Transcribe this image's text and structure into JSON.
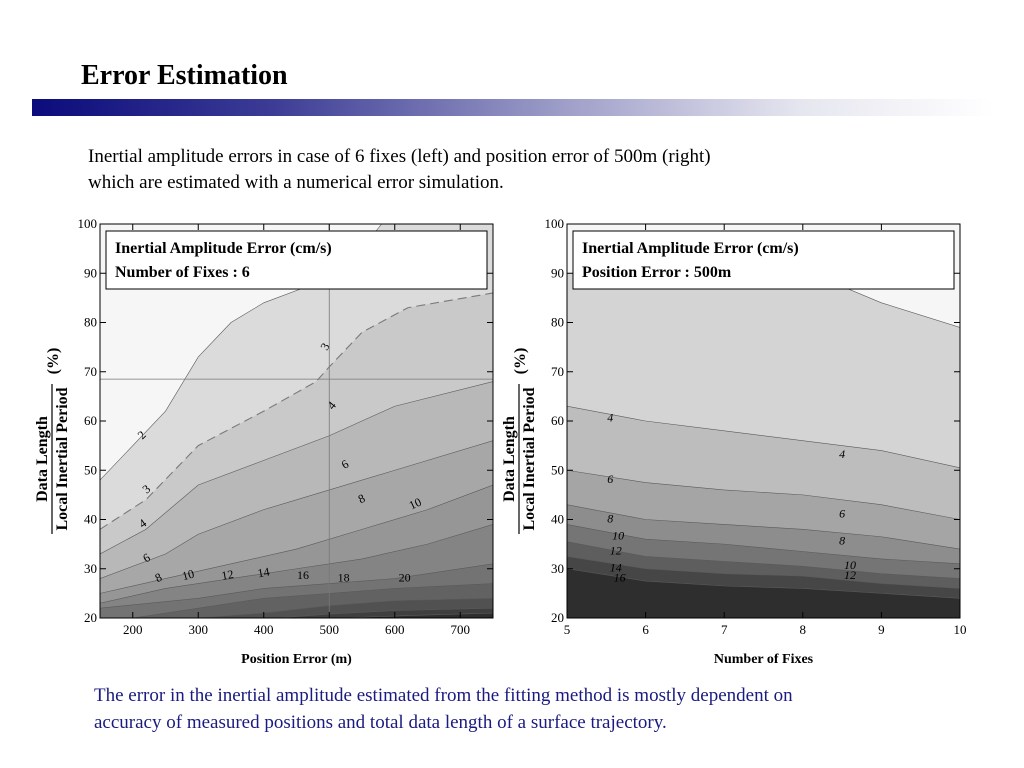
{
  "slide": {
    "title": "Error Estimation",
    "intro_lines": [
      "Inertial amplitude errors in case of 6 fixes (left) and position error of 500m (right)",
      "which are estimated with a numerical error simulation."
    ],
    "conclusion_lines": [
      "The error in the inertial amplitude estimated from the fitting method is mostly dependent on",
      "accuracy of measured positions and total data length of a surface trajectory."
    ],
    "colors": {
      "title_bar_start": "#0b0b7c",
      "conclusion_text": "#1a1a80"
    }
  },
  "chart_data": [
    {
      "type": "contour",
      "xlabel": "Position Error (m)",
      "ylabel_numerator": "Data Length",
      "ylabel_denominator": "Local Inertial Period",
      "ylabel_unit": "(%)",
      "xlim": [
        150,
        750
      ],
      "ylim": [
        20,
        100
      ],
      "xticks": [
        200,
        300,
        400,
        500,
        600,
        700
      ],
      "yticks": [
        20,
        30,
        40,
        50,
        60,
        70,
        80,
        90,
        100
      ],
      "legend": [
        "Inertial Amplitude Error (cm/s)",
        "Number of Fixes : 6"
      ],
      "legend_position": "top",
      "crosshair": {
        "x": 500,
        "y": 68.5
      },
      "contour_levels": [
        2,
        3,
        4,
        6,
        8,
        10,
        12,
        14,
        16,
        18,
        20
      ],
      "contour_lines": [
        {
          "level": 2,
          "points": [
            [
              150,
              48
            ],
            [
              250,
              62
            ],
            [
              300,
              73
            ],
            [
              350,
              80
            ],
            [
              400,
              84
            ],
            [
              480,
              88
            ],
            [
              550,
              95
            ],
            [
              580,
              100
            ]
          ]
        },
        {
          "level": 3,
          "points": [
            [
              150,
              38
            ],
            [
              220,
              44
            ],
            [
              300,
              55
            ],
            [
              400,
              62
            ],
            [
              480,
              68
            ],
            [
              500,
              71
            ],
            [
              550,
              78
            ],
            [
              620,
              83
            ],
            [
              750,
              86
            ]
          ],
          "dashed": true
        },
        {
          "level": 4,
          "points": [
            [
              150,
              33
            ],
            [
              220,
              38
            ],
            [
              300,
              47
            ],
            [
              400,
              52
            ],
            [
              500,
              57
            ],
            [
              600,
              63
            ],
            [
              750,
              68
            ]
          ]
        },
        {
          "level": 6,
          "points": [
            [
              150,
              28
            ],
            [
              250,
              33
            ],
            [
              300,
              37
            ],
            [
              400,
              42
            ],
            [
              500,
              46
            ],
            [
              600,
              50
            ],
            [
              750,
              56
            ]
          ]
        },
        {
          "level": 8,
          "points": [
            [
              150,
              25
            ],
            [
              250,
              28
            ],
            [
              350,
              31
            ],
            [
              450,
              34
            ],
            [
              550,
              38
            ],
            [
              650,
              42
            ],
            [
              750,
              47
            ]
          ]
        },
        {
          "level": 10,
          "points": [
            [
              150,
              23
            ],
            [
              250,
              26
            ],
            [
              350,
              28
            ],
            [
              450,
              30
            ],
            [
              550,
              32
            ],
            [
              650,
              35
            ],
            [
              750,
              39
            ]
          ]
        },
        {
          "level": 12,
          "points": [
            [
              150,
              22
            ],
            [
              300,
              24
            ],
            [
              400,
              26
            ],
            [
              500,
              27
            ],
            [
              600,
              28
            ],
            [
              750,
              31
            ]
          ]
        },
        {
          "level": 14,
          "points": [
            [
              200,
              20
            ],
            [
              300,
              22
            ],
            [
              400,
              24
            ],
            [
              500,
              25
            ],
            [
              600,
              26
            ],
            [
              750,
              27
            ]
          ]
        },
        {
          "level": 16,
          "points": [
            [
              300,
              20
            ],
            [
              400,
              21
            ],
            [
              500,
              22.5
            ],
            [
              600,
              23.5
            ],
            [
              750,
              24
            ]
          ]
        },
        {
          "level": 18,
          "points": [
            [
              420,
              20
            ],
            [
              500,
              20.8
            ],
            [
              600,
              21.5
            ],
            [
              750,
              22
            ]
          ]
        },
        {
          "level": 20,
          "points": [
            [
              520,
              20
            ],
            [
              620,
              20.5
            ],
            [
              750,
              21
            ]
          ]
        }
      ],
      "contour_labels": [
        {
          "text": "2",
          "x": 215,
          "y": 57,
          "rotate": -45
        },
        {
          "text": "3",
          "x": 495,
          "y": 75,
          "rotate": -60
        },
        {
          "text": "4",
          "x": 505,
          "y": 63,
          "rotate": -50
        },
        {
          "text": "3",
          "x": 222,
          "y": 46,
          "rotate": -40
        },
        {
          "text": "4",
          "x": 216,
          "y": 39,
          "rotate": -35
        },
        {
          "text": "6",
          "x": 525,
          "y": 51,
          "rotate": -30
        },
        {
          "text": "6",
          "x": 222,
          "y": 32,
          "rotate": -30
        },
        {
          "text": "8",
          "x": 550,
          "y": 44,
          "rotate": -25
        },
        {
          "text": "8",
          "x": 240,
          "y": 28,
          "rotate": -25
        },
        {
          "text": "10",
          "x": 285,
          "y": 28.5,
          "rotate": -15
        },
        {
          "text": "10",
          "x": 632,
          "y": 43,
          "rotate": -25
        },
        {
          "text": "12",
          "x": 345,
          "y": 28.5,
          "rotate": -10
        },
        {
          "text": "14",
          "x": 400,
          "y": 29,
          "rotate": -10
        },
        {
          "text": "16",
          "x": 460,
          "y": 28.5,
          "rotate": 0
        },
        {
          "text": "18",
          "x": 522,
          "y": 28,
          "rotate": 0
        },
        {
          "text": "20",
          "x": 615,
          "y": 28,
          "rotate": 0
        }
      ]
    },
    {
      "type": "contour",
      "xlabel": "Number of Fixes",
      "ylabel_numerator": "Data Length",
      "ylabel_denominator": "Local Inertial Period",
      "ylabel_unit": "(%)",
      "xlim": [
        5,
        10
      ],
      "ylim": [
        20,
        100
      ],
      "xticks": [
        5,
        6,
        7,
        8,
        9,
        10
      ],
      "yticks": [
        20,
        30,
        40,
        50,
        60,
        70,
        80,
        90,
        100
      ],
      "legend": [
        "Inertial Amplitude Error (cm/s)",
        "Position Error : 500m"
      ],
      "legend_position": "top",
      "contour_levels": [
        3,
        4,
        6,
        8,
        10,
        12,
        14,
        16
      ],
      "contour_lines": [
        {
          "level": 3,
          "points": [
            [
              8.1,
              90
            ],
            [
              9,
              84
            ],
            [
              10,
              79
            ]
          ]
        },
        {
          "level": 4,
          "points": [
            [
              5,
              63
            ],
            [
              6,
              60
            ],
            [
              7,
              58
            ],
            [
              8,
              56
            ],
            [
              9,
              54
            ],
            [
              10,
              50.5
            ]
          ]
        },
        {
          "level": 6,
          "points": [
            [
              5,
              50
            ],
            [
              6,
              47.5
            ],
            [
              7,
              46
            ],
            [
              8,
              45
            ],
            [
              9,
              43
            ],
            [
              10,
              40
            ]
          ]
        },
        {
          "level": 8,
          "points": [
            [
              5,
              43
            ],
            [
              6,
              40
            ],
            [
              7,
              39
            ],
            [
              8,
              38
            ],
            [
              9,
              36.5
            ],
            [
              10,
              34
            ]
          ]
        },
        {
          "level": 10,
          "points": [
            [
              5,
              39
            ],
            [
              6,
              36
            ],
            [
              7,
              35
            ],
            [
              8,
              33.5
            ],
            [
              9,
              32
            ],
            [
              10,
              31
            ]
          ]
        },
        {
          "level": 12,
          "points": [
            [
              5,
              35.5
            ],
            [
              6,
              32.5
            ],
            [
              7,
              31.5
            ],
            [
              8,
              30.5
            ],
            [
              9,
              29
            ],
            [
              10,
              28
            ]
          ]
        },
        {
          "level": 14,
          "points": [
            [
              5,
              32.5
            ],
            [
              6,
              30
            ],
            [
              7,
              29
            ],
            [
              8,
              28.5
            ],
            [
              9,
              27
            ],
            [
              10,
              26
            ]
          ]
        },
        {
          "level": 16,
          "points": [
            [
              5,
              30
            ],
            [
              6,
              27.5
            ],
            [
              7,
              26.5
            ],
            [
              8,
              26
            ],
            [
              9,
              25
            ],
            [
              10,
              24
            ]
          ]
        }
      ],
      "contour_labels": [
        {
          "text": "4",
          "x": 5.55,
          "y": 60.5,
          "rotate": 0
        },
        {
          "text": "4",
          "x": 8.5,
          "y": 53,
          "rotate": 0
        },
        {
          "text": "6",
          "x": 5.55,
          "y": 48,
          "rotate": 0
        },
        {
          "text": "6",
          "x": 8.5,
          "y": 41,
          "rotate": 0
        },
        {
          "text": "8",
          "x": 5.55,
          "y": 40,
          "rotate": 0
        },
        {
          "text": "8",
          "x": 8.5,
          "y": 35.5,
          "rotate": 0
        },
        {
          "text": "10",
          "x": 5.65,
          "y": 36.5,
          "rotate": 0
        },
        {
          "text": "10",
          "x": 8.6,
          "y": 30.5,
          "rotate": 0
        },
        {
          "text": "12",
          "x": 5.62,
          "y": 33.5,
          "rotate": 0
        },
        {
          "text": "12",
          "x": 8.6,
          "y": 28.5,
          "rotate": 0
        },
        {
          "text": "14",
          "x": 5.62,
          "y": 30,
          "rotate": 0
        },
        {
          "text": "16",
          "x": 5.67,
          "y": 28,
          "rotate": 0
        }
      ]
    }
  ]
}
